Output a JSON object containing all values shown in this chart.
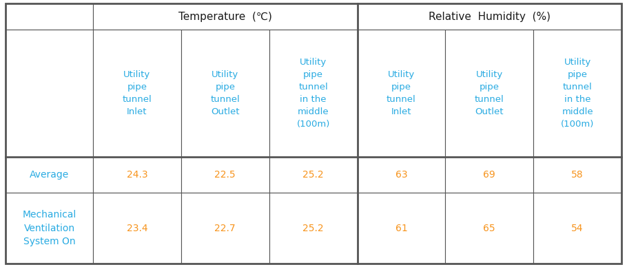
{
  "col_header1_temp": "Temperature  (℃)",
  "col_header1_rh": "Relative  Humidity  (%)",
  "col_header2": [
    "Utility\npipe\ntunnel\nInlet",
    "Utility\npipe\ntunnel\nOutlet",
    "Utility\npipe\ntunnel\nin the\nmiddle\n(100m)",
    "Utility\npipe\ntunnel\nInlet",
    "Utility\npipe\ntunnel\nOutlet",
    "Utility\npipe\ntunnel\nin the\nmiddle\n(100m)"
  ],
  "row_labels": [
    "Average",
    "Mechanical\nVentilation\nSystem On"
  ],
  "data": [
    [
      "24.3",
      "22.5",
      "25.2",
      "63",
      "69",
      "58"
    ],
    [
      "23.4",
      "22.7",
      "25.2",
      "61",
      "65",
      "54"
    ]
  ],
  "header1_color": "#1a1a1a",
  "header2_color": "#29abe2",
  "row_label_color": "#29abe2",
  "data_color": "#f7941d",
  "border_color": "#555555",
  "bg_color": "#ffffff",
  "thick_lw": 2.0,
  "thin_lw": 0.8
}
